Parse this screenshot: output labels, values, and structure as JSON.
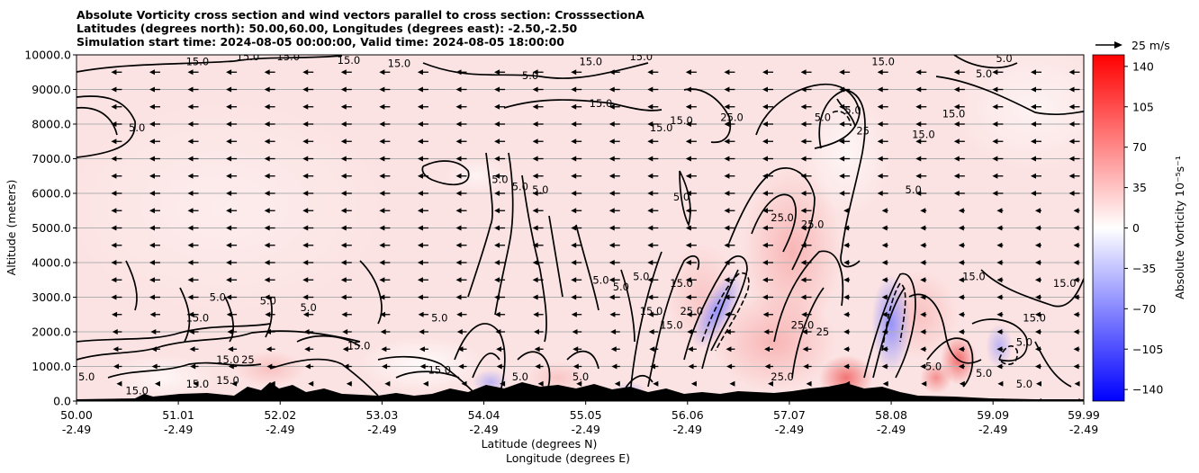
{
  "title_lines": [
    "Absolute Vorticity cross section and wind vectors parallel to cross section: CrosssectionA",
    "Latitudes (degrees north): 50.00,60.00, Longitudes (degrees east): -2.50,-2.50",
    "Simulation start time: 2024-08-05 00:00:00, Valid time: 2024-08-05 18:00:00"
  ],
  "chart_data": {
    "type": "heatmap",
    "title": "Absolute Vorticity cross section and wind vectors parallel to cross section: CrosssectionA",
    "ylabel": "Altitude (meters)",
    "xlabel_lines": [
      "Latitude (degrees N)",
      "Longitude (degrees E)"
    ],
    "x_ticks_lat": [
      "50.00",
      "51.01",
      "52.02",
      "53.03",
      "54.04",
      "55.05",
      "56.06",
      "57.07",
      "58.08",
      "59.09",
      "59.99"
    ],
    "x_ticks_lon": [
      "-2.49",
      "-2.49",
      "-2.49",
      "-2.49",
      "-2.49",
      "-2.49",
      "-2.49",
      "-2.49",
      "-2.49",
      "-2.49",
      "-2.49"
    ],
    "y_ticks": [
      "0.0",
      "1000.0",
      "2000.0",
      "3000.0",
      "4000.0",
      "5000.0",
      "6000.0",
      "7000.0",
      "8000.0",
      "9000.0",
      "10000.0"
    ],
    "xlim": [
      50.0,
      59.99
    ],
    "ylim": [
      0,
      10000
    ],
    "grid": "horizontal",
    "colorbar": {
      "label": "Absolute Vorticity 10⁻⁵s⁻¹",
      "ticks": [
        "140",
        "105",
        "70",
        "35",
        "0",
        "−35",
        "−70",
        "−105",
        "−140"
      ],
      "range": [
        -150,
        150
      ],
      "colors": {
        "negative": "#0000ff",
        "zero": "#ffffff",
        "positive": "#ff0000"
      }
    },
    "wind_key": {
      "label": "25 m/s",
      "speed": 25
    },
    "wind_vector_direction": "toward decreasing latitude",
    "contour_labels": [
      {
        "lat": 51.2,
        "alt": 9800,
        "text": "15.0"
      },
      {
        "lat": 51.7,
        "alt": 9950,
        "text": "15.0"
      },
      {
        "lat": 52.1,
        "alt": 9950,
        "text": "15.0"
      },
      {
        "lat": 52.7,
        "alt": 9850,
        "text": "15.0"
      },
      {
        "lat": 53.2,
        "alt": 9750,
        "text": "15.0"
      },
      {
        "lat": 50.6,
        "alt": 7900,
        "text": "5.0"
      },
      {
        "lat": 54.5,
        "alt": 9400,
        "text": "5.0"
      },
      {
        "lat": 55.1,
        "alt": 9800,
        "text": "15.0"
      },
      {
        "lat": 55.2,
        "alt": 8600,
        "text": "15.0"
      },
      {
        "lat": 55.6,
        "alt": 9950,
        "text": "15.0"
      },
      {
        "lat": 59.0,
        "alt": 9450,
        "text": "5.0"
      },
      {
        "lat": 59.2,
        "alt": 9900,
        "text": "5.0"
      },
      {
        "lat": 58.0,
        "alt": 9800,
        "text": "15.0"
      },
      {
        "lat": 58.4,
        "alt": 7700,
        "text": "15.0"
      },
      {
        "lat": 58.7,
        "alt": 8300,
        "text": "15.0"
      },
      {
        "lat": 56.0,
        "alt": 8100,
        "text": "15.0"
      },
      {
        "lat": 55.8,
        "alt": 7900,
        "text": "15.0"
      },
      {
        "lat": 56.5,
        "alt": 8200,
        "text": "25.0"
      },
      {
        "lat": 57.4,
        "alt": 8200,
        "text": "5.0"
      },
      {
        "lat": 57.7,
        "alt": 8400,
        "text": "5.0"
      },
      {
        "lat": 57.8,
        "alt": 7800,
        "text": "25"
      },
      {
        "lat": 58.3,
        "alt": 6100,
        "text": "5.0"
      },
      {
        "lat": 54.2,
        "alt": 6400,
        "text": "5.0"
      },
      {
        "lat": 54.4,
        "alt": 6200,
        "text": "5.0"
      },
      {
        "lat": 54.6,
        "alt": 6100,
        "text": "5.0"
      },
      {
        "lat": 56.0,
        "alt": 5900,
        "text": "5.0"
      },
      {
        "lat": 57.0,
        "alt": 5300,
        "text": "25.0"
      },
      {
        "lat": 57.3,
        "alt": 5100,
        "text": "25.0"
      },
      {
        "lat": 51.4,
        "alt": 3000,
        "text": "5.0"
      },
      {
        "lat": 51.9,
        "alt": 2900,
        "text": "5.0"
      },
      {
        "lat": 52.3,
        "alt": 2700,
        "text": "5.0"
      },
      {
        "lat": 51.2,
        "alt": 2400,
        "text": "15.0"
      },
      {
        "lat": 53.6,
        "alt": 2400,
        "text": "5.0"
      },
      {
        "lat": 55.2,
        "alt": 3500,
        "text": "5.0"
      },
      {
        "lat": 55.4,
        "alt": 3300,
        "text": "5.0"
      },
      {
        "lat": 55.6,
        "alt": 3600,
        "text": "5.0"
      },
      {
        "lat": 56.0,
        "alt": 3400,
        "text": "15.0"
      },
      {
        "lat": 55.7,
        "alt": 2600,
        "text": "15.0"
      },
      {
        "lat": 55.9,
        "alt": 2200,
        "text": "15.0"
      },
      {
        "lat": 56.1,
        "alt": 2600,
        "text": "25.0"
      },
      {
        "lat": 58.9,
        "alt": 3600,
        "text": "15.0"
      },
      {
        "lat": 59.5,
        "alt": 2400,
        "text": "15.0"
      },
      {
        "lat": 59.8,
        "alt": 3400,
        "text": "15.0"
      },
      {
        "lat": 59.4,
        "alt": 1700,
        "text": "5.0"
      },
      {
        "lat": 59.0,
        "alt": 800,
        "text": "5.0"
      },
      {
        "lat": 57.2,
        "alt": 2200,
        "text": "25.0"
      },
      {
        "lat": 57.4,
        "alt": 2000,
        "text": "25"
      },
      {
        "lat": 57.0,
        "alt": 700,
        "text": "25.0"
      },
      {
        "lat": 52.8,
        "alt": 1600,
        "text": "15.0"
      },
      {
        "lat": 51.5,
        "alt": 1200,
        "text": "15.0"
      },
      {
        "lat": 51.7,
        "alt": 1200,
        "text": "25"
      },
      {
        "lat": 51.2,
        "alt": 500,
        "text": "15.0"
      },
      {
        "lat": 51.5,
        "alt": 600,
        "text": "15.0"
      },
      {
        "lat": 50.6,
        "alt": 300,
        "text": "15.0"
      },
      {
        "lat": 50.1,
        "alt": 700,
        "text": "5.0"
      },
      {
        "lat": 53.6,
        "alt": 900,
        "text": "15.0"
      },
      {
        "lat": 54.4,
        "alt": 700,
        "text": "5.0"
      },
      {
        "lat": 55.0,
        "alt": 700,
        "text": "5.0"
      },
      {
        "lat": 58.5,
        "alt": 1000,
        "text": "5.0"
      },
      {
        "lat": 59.4,
        "alt": 500,
        "text": "5.0"
      }
    ]
  }
}
